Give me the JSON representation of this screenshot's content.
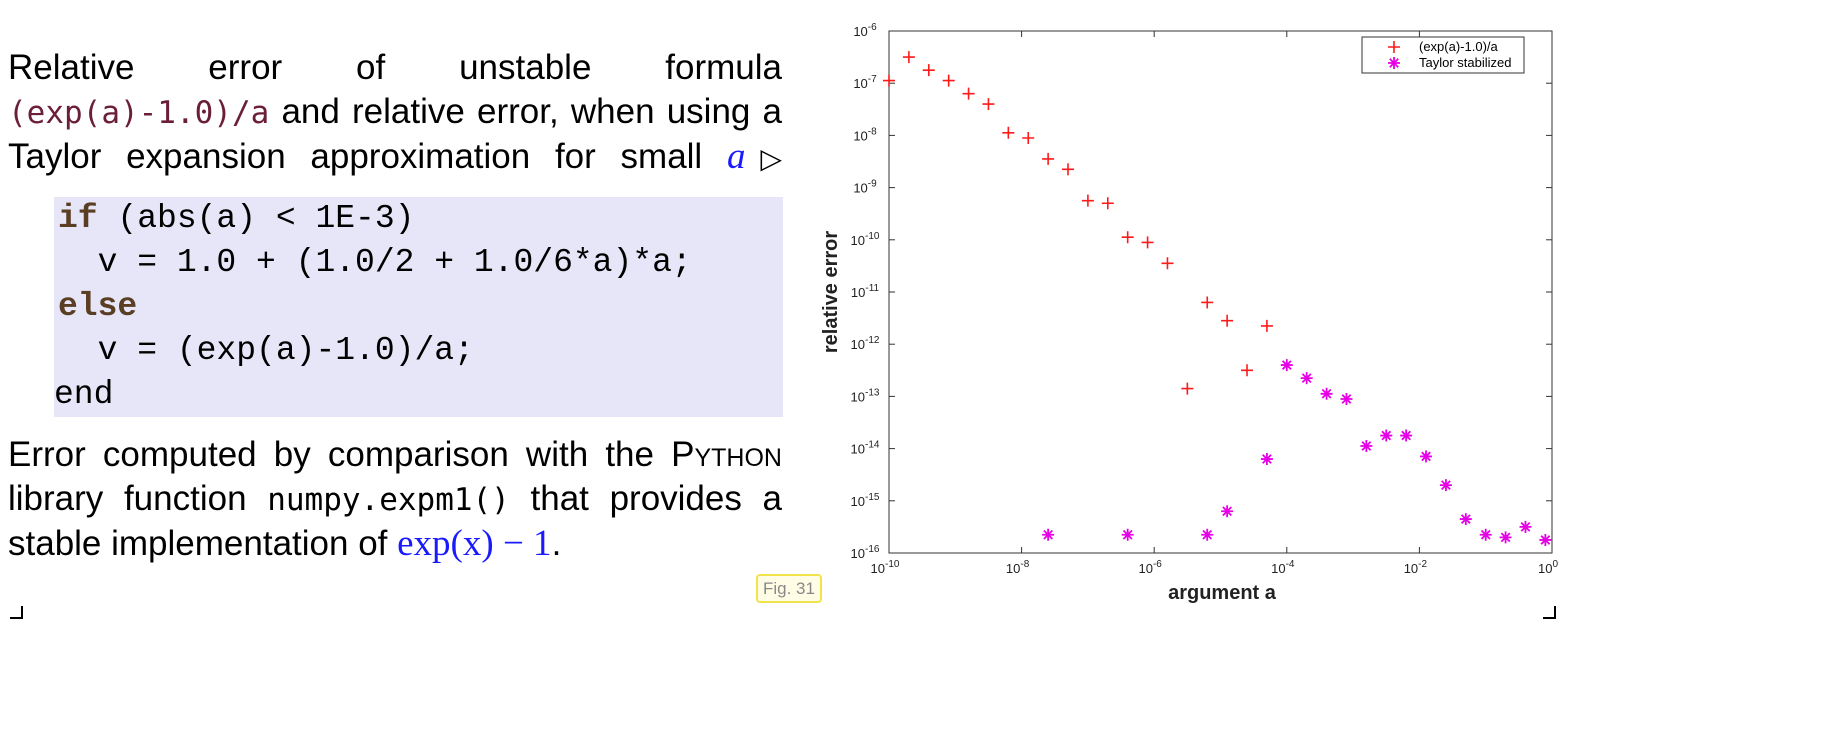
{
  "text": {
    "p1_word1": "Relative",
    "p1_word2": "error",
    "p1_word3": "of",
    "p1_word4": "unstable",
    "p1_word5": "formula",
    "p1_code": "(exp(a)-1.0)/a",
    "p1_rest": "and relative error, when using a Taylor expansion approximation for small",
    "p1_var": "a",
    "p1_arrow": "▷",
    "p2_start": "Error computed by comparison with the",
    "p2_lib": "Python",
    "p2_mid": "library function",
    "p2_code": "numpy.expm1()",
    "p2_mid2": "that provides a stable implementation of",
    "p2_math": "exp(x) − 1",
    "p2_end": ".",
    "fig_label": "Fig. 31"
  },
  "code": {
    "line1_kw": "if",
    "line1_rest": " (abs(a) < 1E-3)",
    "line2": "  v = 1.0 + (1.0/2 + 1.0/6*a)*a;",
    "line3_kw": "else",
    "line4": "  v = (exp(a)-1.0)/a;",
    "line5": "end"
  },
  "colors": {
    "unstable": "#ff1a1a",
    "taylor": "#e600e6",
    "code_bg": "#e6e6f8",
    "math": "#1a1aff"
  },
  "chart_data": {
    "type": "scatter",
    "title": "",
    "xlabel": "argument a",
    "ylabel": "relative error",
    "xscale": "log",
    "yscale": "log",
    "xlim_exp": [
      -10,
      0
    ],
    "ylim_exp": [
      -16,
      -6
    ],
    "xticks_exp": [
      -10,
      -8,
      -6,
      -4,
      -2,
      0
    ],
    "yticks_exp": [
      -16,
      -15,
      -14,
      -13,
      -12,
      -11,
      -10,
      -9,
      -8,
      -7,
      -6
    ],
    "tick_base": "10",
    "legend_position": "top-right",
    "series": [
      {
        "name": "(exp(a)-1.0)/a",
        "marker": "plus",
        "log10_x": [
          -10.0,
          -9.7,
          -9.4,
          -9.1,
          -8.8,
          -8.5,
          -8.2,
          -7.9,
          -7.6,
          -7.3,
          -7.0,
          -6.7,
          -6.4,
          -6.1,
          -5.8,
          -5.5,
          -5.2,
          -4.9,
          -4.6,
          -4.3
        ],
        "log10_y": [
          -6.95,
          -6.5,
          -6.75,
          -6.95,
          -7.2,
          -7.4,
          -7.95,
          -8.05,
          -8.45,
          -8.65,
          -9.25,
          -9.3,
          -9.95,
          -10.05,
          -10.45,
          -12.85,
          -11.2,
          -11.55,
          -12.5,
          -11.65
        ]
      },
      {
        "name": "Taylor stabilized",
        "marker": "asterisk",
        "log10_x": [
          -7.6,
          -6.4,
          -5.2,
          -4.9,
          -4.3,
          -4.0,
          -3.7,
          -3.4,
          -3.1,
          -2.8,
          -2.5,
          -2.2,
          -1.9,
          -1.6,
          -1.3,
          -1.0,
          -0.7,
          -0.4,
          -0.1
        ],
        "log10_y": [
          -15.65,
          -15.65,
          -15.65,
          -15.2,
          -14.2,
          -12.4,
          -12.65,
          -12.95,
          -13.05,
          -13.95,
          -13.75,
          -13.75,
          -14.15,
          -14.7,
          -15.35,
          -15.65,
          -15.7,
          -15.5,
          -15.75
        ]
      }
    ]
  }
}
